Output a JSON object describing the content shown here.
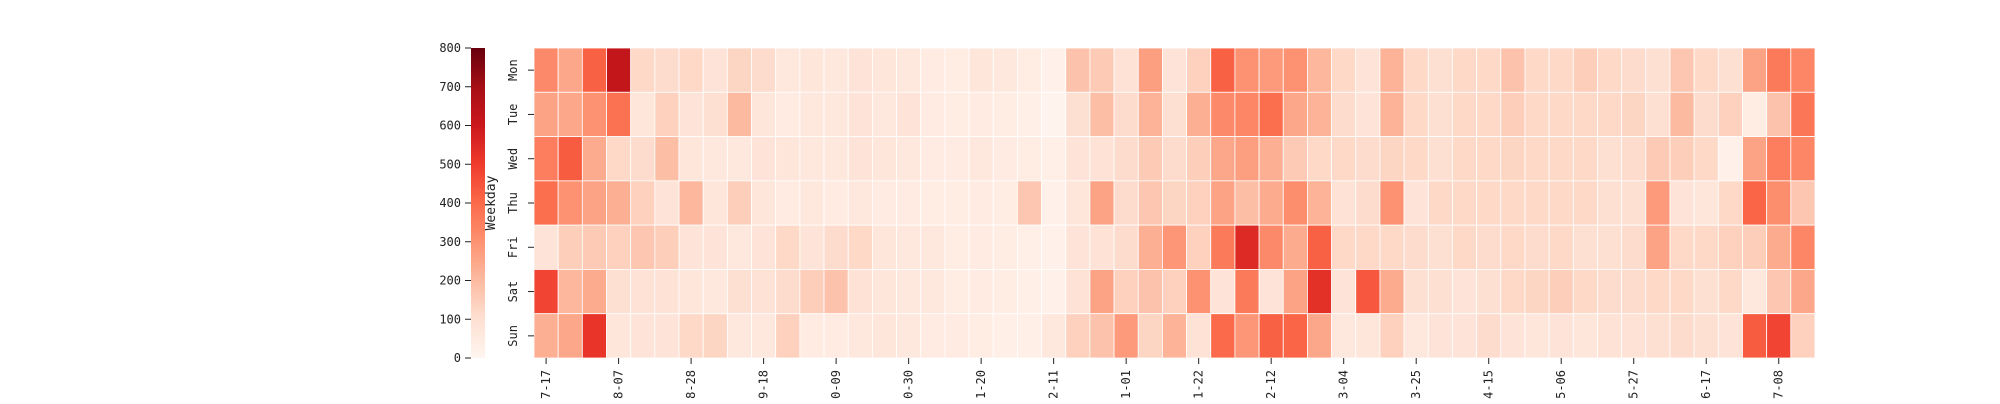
{
  "chart_data": {
    "type": "heatmap",
    "title": "",
    "ylabel": "Weekday",
    "xlabel": "",
    "rows": [
      "Mon",
      "Tue",
      "Wed",
      "Thu",
      "Fri",
      "Sat",
      "Sun"
    ],
    "x_tick_labels": [
      "7-17",
      "8-07",
      "8-28",
      "9-18",
      "0-09",
      "0-30",
      "1-20",
      "2-11",
      "1-01",
      "1-22",
      "2-12",
      "3-04",
      "3-25",
      "4-15",
      "5-06",
      "5-27",
      "6-17",
      "7-08"
    ],
    "x_tick_column_index": [
      0,
      3,
      6,
      9,
      12,
      15,
      18,
      21,
      24,
      27,
      30,
      33,
      36,
      39,
      42,
      45,
      48,
      51
    ],
    "colorbar": {
      "min": 0,
      "max": 800,
      "ticks": [
        0,
        100,
        200,
        300,
        400,
        500,
        600,
        700,
        800
      ],
      "colormap": "Reds"
    },
    "grid": true,
    "values": [
      [
        320,
        250,
        420,
        620,
        120,
        110,
        120,
        80,
        130,
        110,
        60,
        70,
        60,
        80,
        70,
        60,
        50,
        40,
        70,
        60,
        40,
        20,
        180,
        160,
        90,
        270,
        80,
        140,
        420,
        300,
        280,
        300,
        210,
        120,
        80,
        220,
        120,
        100,
        120,
        120,
        180,
        120,
        120,
        150,
        120,
        110,
        100,
        170,
        120,
        100,
        260,
        360,
        330
      ],
      [
        260,
        250,
        300,
        380,
        70,
        140,
        80,
        100,
        200,
        70,
        50,
        60,
        60,
        80,
        60,
        80,
        50,
        40,
        50,
        40,
        30,
        10,
        100,
        190,
        110,
        220,
        100,
        230,
        320,
        330,
        390,
        250,
        220,
        110,
        80,
        220,
        120,
        100,
        120,
        120,
        150,
        120,
        120,
        120,
        120,
        130,
        100,
        200,
        110,
        140,
        40,
        180,
        370
      ],
      [
        350,
        430,
        240,
        120,
        110,
        190,
        70,
        60,
        60,
        80,
        70,
        60,
        60,
        80,
        70,
        60,
        50,
        50,
        60,
        50,
        40,
        30,
        80,
        90,
        110,
        160,
        110,
        150,
        250,
        270,
        230,
        160,
        120,
        120,
        110,
        130,
        120,
        100,
        120,
        120,
        130,
        120,
        120,
        120,
        100,
        110,
        160,
        150,
        120,
        20,
        260,
        350,
        330
      ],
      [
        390,
        300,
        260,
        230,
        140,
        80,
        210,
        70,
        150,
        70,
        50,
        60,
        50,
        60,
        50,
        50,
        40,
        40,
        50,
        40,
        170,
        20,
        70,
        260,
        110,
        170,
        130,
        140,
        260,
        190,
        240,
        310,
        220,
        90,
        110,
        300,
        80,
        120,
        120,
        120,
        120,
        120,
        120,
        120,
        100,
        100,
        280,
        80,
        70,
        120,
        410,
        310,
        170
      ],
      [
        80,
        150,
        160,
        140,
        170,
        150,
        80,
        80,
        60,
        80,
        120,
        80,
        110,
        120,
        70,
        60,
        60,
        40,
        50,
        40,
        30,
        20,
        80,
        90,
        110,
        230,
        290,
        140,
        360,
        550,
        320,
        240,
        420,
        120,
        120,
        120,
        110,
        100,
        120,
        110,
        120,
        110,
        120,
        100,
        100,
        110,
        260,
        120,
        120,
        140,
        150,
        240,
        330
      ],
      [
        480,
        210,
        240,
        100,
        90,
        90,
        70,
        60,
        100,
        90,
        110,
        150,
        180,
        90,
        70,
        60,
        60,
        40,
        50,
        40,
        30,
        20,
        90,
        260,
        140,
        180,
        140,
        300,
        80,
        360,
        80,
        260,
        530,
        80,
        440,
        240,
        100,
        100,
        80,
        100,
        120,
        130,
        150,
        120,
        110,
        110,
        120,
        120,
        100,
        120,
        60,
        170,
        250
      ],
      [
        230,
        250,
        520,
        70,
        80,
        80,
        120,
        130,
        60,
        60,
        140,
        50,
        50,
        60,
        70,
        60,
        50,
        50,
        40,
        30,
        30,
        60,
        140,
        180,
        280,
        130,
        220,
        90,
        400,
        290,
        420,
        410,
        250,
        60,
        70,
        140,
        60,
        80,
        80,
        110,
        80,
        70,
        80,
        70,
        90,
        90,
        100,
        110,
        100,
        80,
        430,
        480,
        140
      ]
    ]
  }
}
